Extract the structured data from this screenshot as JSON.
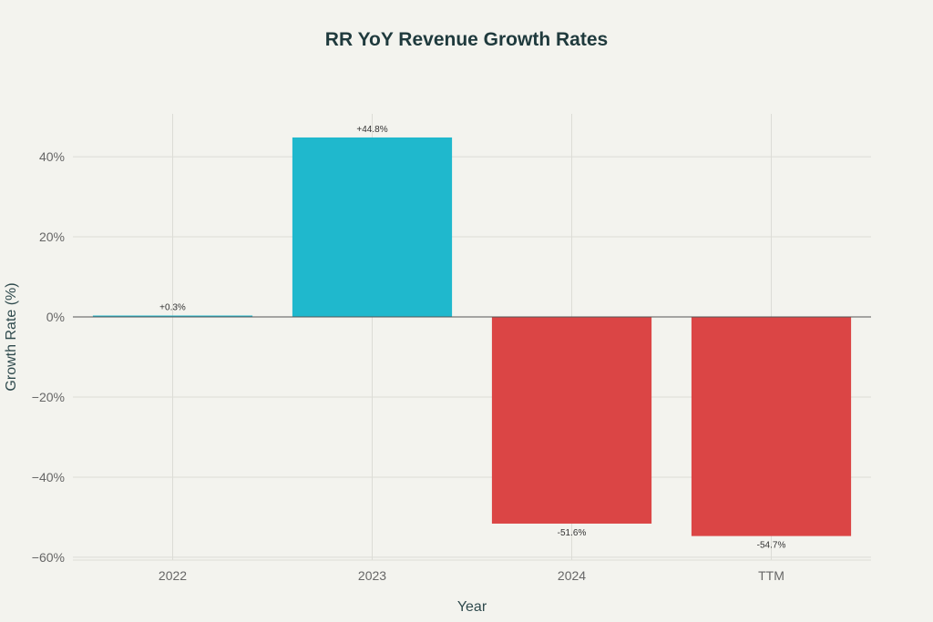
{
  "chart_data": {
    "type": "bar",
    "title": "RR YoY Revenue Growth Rates",
    "xlabel": "Year",
    "ylabel": "Growth Rate (%)",
    "categories": [
      "2022",
      "2023",
      "2024",
      "TTM"
    ],
    "values": [
      0.3,
      44.8,
      -51.6,
      -54.7
    ],
    "data_labels": [
      "+0.3%",
      "+44.8%",
      "-51.6%",
      "-54.7%"
    ],
    "ylim": [
      -60.7,
      50.7
    ],
    "yticks": [
      40,
      20,
      0,
      -20,
      -40,
      -60
    ],
    "ytick_labels": [
      "40%",
      "20%",
      "0%",
      "−20%",
      "−40%",
      "−60%"
    ],
    "grid": true,
    "colors": {
      "positive": "#1fb8cd",
      "negative": "#db4545",
      "background": "#f3f3ee",
      "grid": "#dcdcd6",
      "zero_line": "#555555"
    }
  }
}
